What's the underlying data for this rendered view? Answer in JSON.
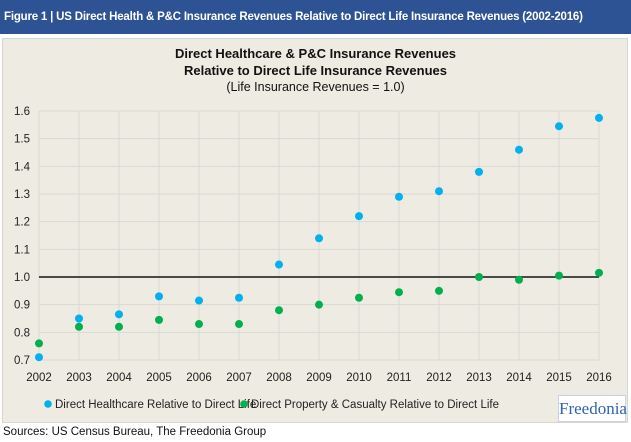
{
  "header": {
    "title": "Figure 1 | US Direct Health & P&C Insurance Revenues Relative to Direct Life Insurance Revenues (2002-2016)"
  },
  "chart_data": {
    "type": "scatter",
    "title": "Direct Healthcare & P&C Insurance Revenues",
    "title_line2": "Relative to Direct Life Insurance Revenues",
    "subtitle": "(Life Insurance Revenues = 1.0)",
    "x": [
      2002,
      2003,
      2004,
      2005,
      2006,
      2007,
      2008,
      2009,
      2010,
      2011,
      2012,
      2013,
      2014,
      2015,
      2016
    ],
    "x_tick_labels": [
      "2002",
      "2003",
      "2004",
      "2005",
      "2006",
      "2007",
      "2008",
      "2009",
      "2010",
      "2011",
      "2012",
      "2013",
      "2014",
      "2015",
      "2016"
    ],
    "y_tick_labels": [
      "0.7",
      "0.8",
      "0.9",
      "1.0",
      "1.1",
      "1.2",
      "1.3",
      "1.4",
      "1.5",
      "1.6"
    ],
    "ylim": [
      0.7,
      1.6
    ],
    "grid": true,
    "reference_line": 1.0,
    "legend_position": "bottom",
    "series": [
      {
        "name": "Direct Healthcare Relative to Direct Life",
        "color": "#00B0F0",
        "values": [
          0.71,
          0.85,
          0.865,
          0.93,
          0.915,
          0.925,
          1.045,
          1.14,
          1.22,
          1.29,
          1.31,
          1.38,
          1.46,
          1.545,
          1.575
        ]
      },
      {
        "name": "Direct Property & Casualty Relative to Direct Life",
        "color": "#00B050",
        "values": [
          0.76,
          0.82,
          0.82,
          0.845,
          0.83,
          0.83,
          0.88,
          0.9,
          0.925,
          0.945,
          0.95,
          1.0,
          0.99,
          1.005,
          1.015
        ]
      }
    ]
  },
  "logo": "Freedonia",
  "sources": "Sources: US Census Bureau, The Freedonia Group"
}
